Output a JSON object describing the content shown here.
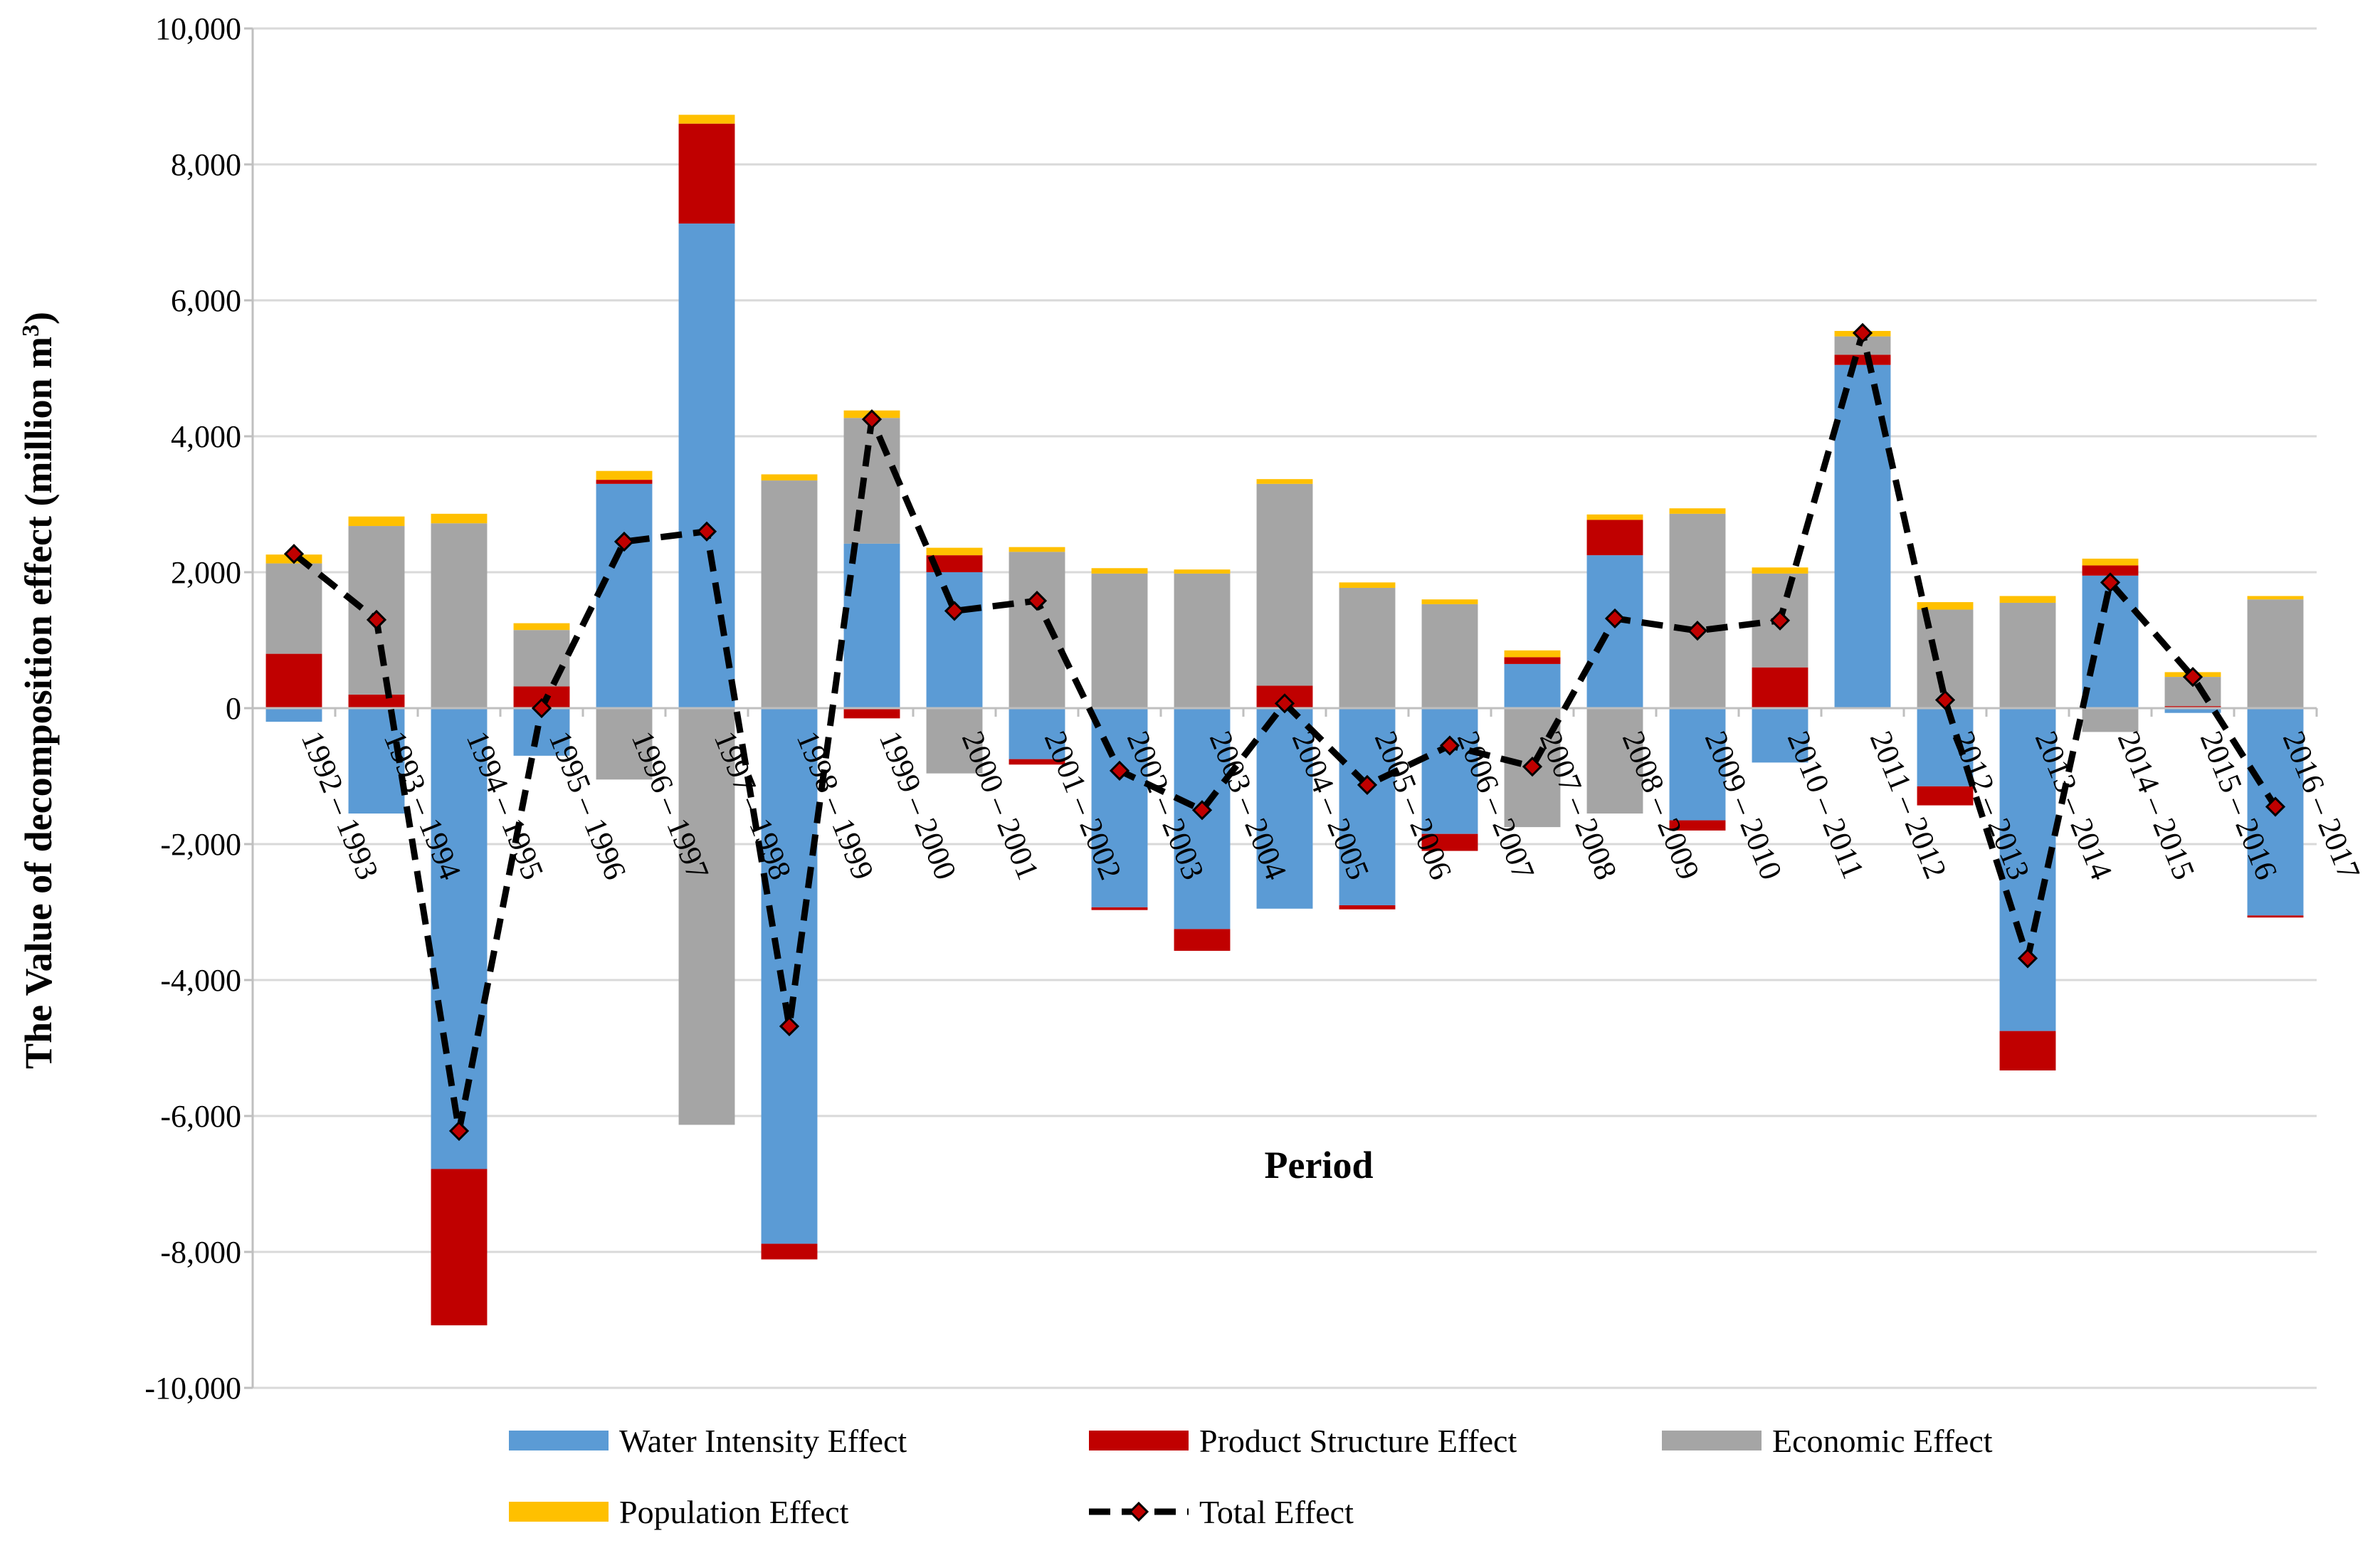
{
  "chart_data": {
    "type": "bar",
    "stacked": true,
    "title": "",
    "xlabel": "Period",
    "ylabel": "The Value of decomposition effect (million m3)",
    "ylabel_base": "The Value of decomposition effect (million m",
    "ylabel_sup": "3",
    "ylabel_close": ")",
    "ylim": [
      -10000,
      10000
    ],
    "y_ticks": [
      10000,
      8000,
      6000,
      4000,
      2000,
      0,
      -2000,
      -4000,
      -6000,
      -8000,
      -10000
    ],
    "y_tick_labels": [
      "10,000",
      "8,000",
      "6,000",
      "4,000",
      "2,000",
      "0",
      "-2,000",
      "-4,000",
      "-6,000",
      "-8,000",
      "-10,000"
    ],
    "grid": true,
    "legend_position": "bottom",
    "categories": [
      "1992 – 1993",
      "1993 – 1994",
      "1994 – 1995",
      "1995 – 1996",
      "1996 – 1997",
      "1997 – 1998",
      "1998 – 1999",
      "1999 – 2000",
      "2000 – 2001",
      "2001 – 2002",
      "2002 – 2003",
      "2003 – 2004",
      "2004 – 2005",
      "2005 – 2006",
      "2006 – 2007",
      "2007 – 2008",
      "2008 – 2009",
      "2009 – 2010",
      "2010 – 2011",
      "2011 – 2012",
      "2012 – 2013",
      "2013 – 2014",
      "2014 – 2015",
      "2015 – 2016",
      "2016 – 2017"
    ],
    "series": [
      {
        "name": "Water Intensity Effect",
        "kind": "bar",
        "color": "#5B9BD5",
        "values": [
          -200,
          -1550,
          -6780,
          -700,
          3300,
          7130,
          -7880,
          2420,
          2000,
          -750,
          -2930,
          -3250,
          -2950,
          -2900,
          -1850,
          650,
          2250,
          -1650,
          -800,
          5050,
          -1150,
          -4750,
          1950,
          -70,
          -3050
        ]
      },
      {
        "name": "Product Structure Effect",
        "kind": "bar",
        "color": "#C00000",
        "values": [
          800,
          200,
          -2300,
          320,
          60,
          1470,
          -230,
          -150,
          250,
          -80,
          -40,
          -320,
          330,
          -60,
          -250,
          100,
          520,
          -150,
          600,
          150,
          -280,
          -580,
          150,
          30,
          -30
        ]
      },
      {
        "name": "Economic Effect",
        "kind": "bar",
        "color": "#A5A5A5",
        "values": [
          1330,
          2480,
          2720,
          830,
          -1050,
          -6130,
          3350,
          1850,
          -960,
          2300,
          1980,
          1980,
          2970,
          1770,
          1530,
          -1750,
          -1550,
          2860,
          1380,
          270,
          1450,
          1550,
          -350,
          430,
          1600
        ]
      },
      {
        "name": "Population Effect",
        "kind": "bar",
        "color": "#FFC000",
        "values": [
          130,
          140,
          140,
          100,
          130,
          130,
          90,
          110,
          110,
          70,
          80,
          60,
          70,
          80,
          70,
          100,
          80,
          80,
          90,
          80,
          110,
          100,
          100,
          70,
          50
        ]
      },
      {
        "name": "Total Effect",
        "kind": "line",
        "color": "#000000",
        "marker_color": "#C00000",
        "values": [
          2270,
          1300,
          -6220,
          0,
          2450,
          2600,
          -4680,
          4250,
          1430,
          1580,
          -920,
          -1500,
          70,
          -1130,
          -550,
          -860,
          1320,
          1140,
          1290,
          5520,
          120,
          -3680,
          1850,
          460,
          -1450
        ]
      }
    ]
  }
}
